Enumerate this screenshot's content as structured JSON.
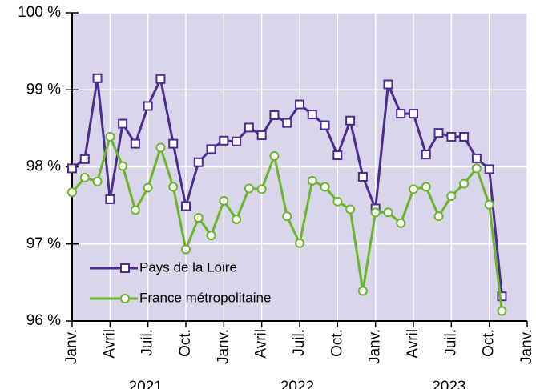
{
  "chart_data": {
    "type": "line",
    "x": [
      0,
      1,
      2,
      3,
      4,
      5,
      6,
      7,
      8,
      9,
      10,
      11,
      12,
      13,
      14,
      15,
      16,
      17,
      18,
      19,
      20,
      21,
      22,
      23,
      24,
      25,
      26,
      27,
      28,
      29,
      30,
      31,
      32,
      33,
      34
    ],
    "xlim": [
      0,
      36
    ],
    "xticks": [
      {
        "value": 0,
        "label": "Janv."
      },
      {
        "value": 3,
        "label": "Avril"
      },
      {
        "value": 6,
        "label": "Juil."
      },
      {
        "value": 9,
        "label": "Oct."
      },
      {
        "value": 12,
        "label": "Janv."
      },
      {
        "value": 15,
        "label": "Avril"
      },
      {
        "value": 18,
        "label": "Juil."
      },
      {
        "value": 21,
        "label": "Oct."
      },
      {
        "value": 24,
        "label": "Janv."
      },
      {
        "value": 27,
        "label": "Avril"
      },
      {
        "value": 30,
        "label": "Juil."
      },
      {
        "value": 33,
        "label": "Oct."
      },
      {
        "value": 36,
        "label": "Janv."
      }
    ],
    "x_groups": [
      "2021",
      "2022",
      "2023"
    ],
    "ylim": [
      96,
      100
    ],
    "yticks": [
      {
        "value": 96,
        "label": "96 %"
      },
      {
        "value": 97,
        "label": "97 %"
      },
      {
        "value": 98,
        "label": "98 %"
      },
      {
        "value": 99,
        "label": "99 %"
      },
      {
        "value": 100,
        "label": "100 %"
      }
    ],
    "grid": true,
    "legend": "lower left",
    "series": [
      {
        "name": "Pays de la Loire",
        "color": "#4b2d8f",
        "marker": "square",
        "values": [
          97.98,
          98.1,
          99.15,
          97.58,
          98.56,
          98.3,
          98.79,
          99.14,
          98.3,
          97.49,
          98.06,
          98.23,
          98.34,
          98.33,
          98.51,
          98.41,
          98.67,
          98.57,
          98.81,
          98.68,
          98.54,
          98.15,
          98.6,
          97.87,
          97.46,
          99.07,
          98.69,
          98.69,
          98.16,
          98.44,
          98.39,
          98.39,
          98.11,
          97.97,
          96.32
        ]
      },
      {
        "name": "France métropolitaine",
        "color": "#6bb52b",
        "marker": "circle",
        "values": [
          97.67,
          97.86,
          97.81,
          98.39,
          98.01,
          97.44,
          97.73,
          98.25,
          97.74,
          96.93,
          97.34,
          97.11,
          97.56,
          97.32,
          97.72,
          97.71,
          98.14,
          97.36,
          97.01,
          97.82,
          97.74,
          97.55,
          97.45,
          96.39,
          97.41,
          97.41,
          97.27,
          97.71,
          97.74,
          97.36,
          97.62,
          97.78,
          97.98,
          97.51,
          96.13
        ]
      }
    ]
  }
}
